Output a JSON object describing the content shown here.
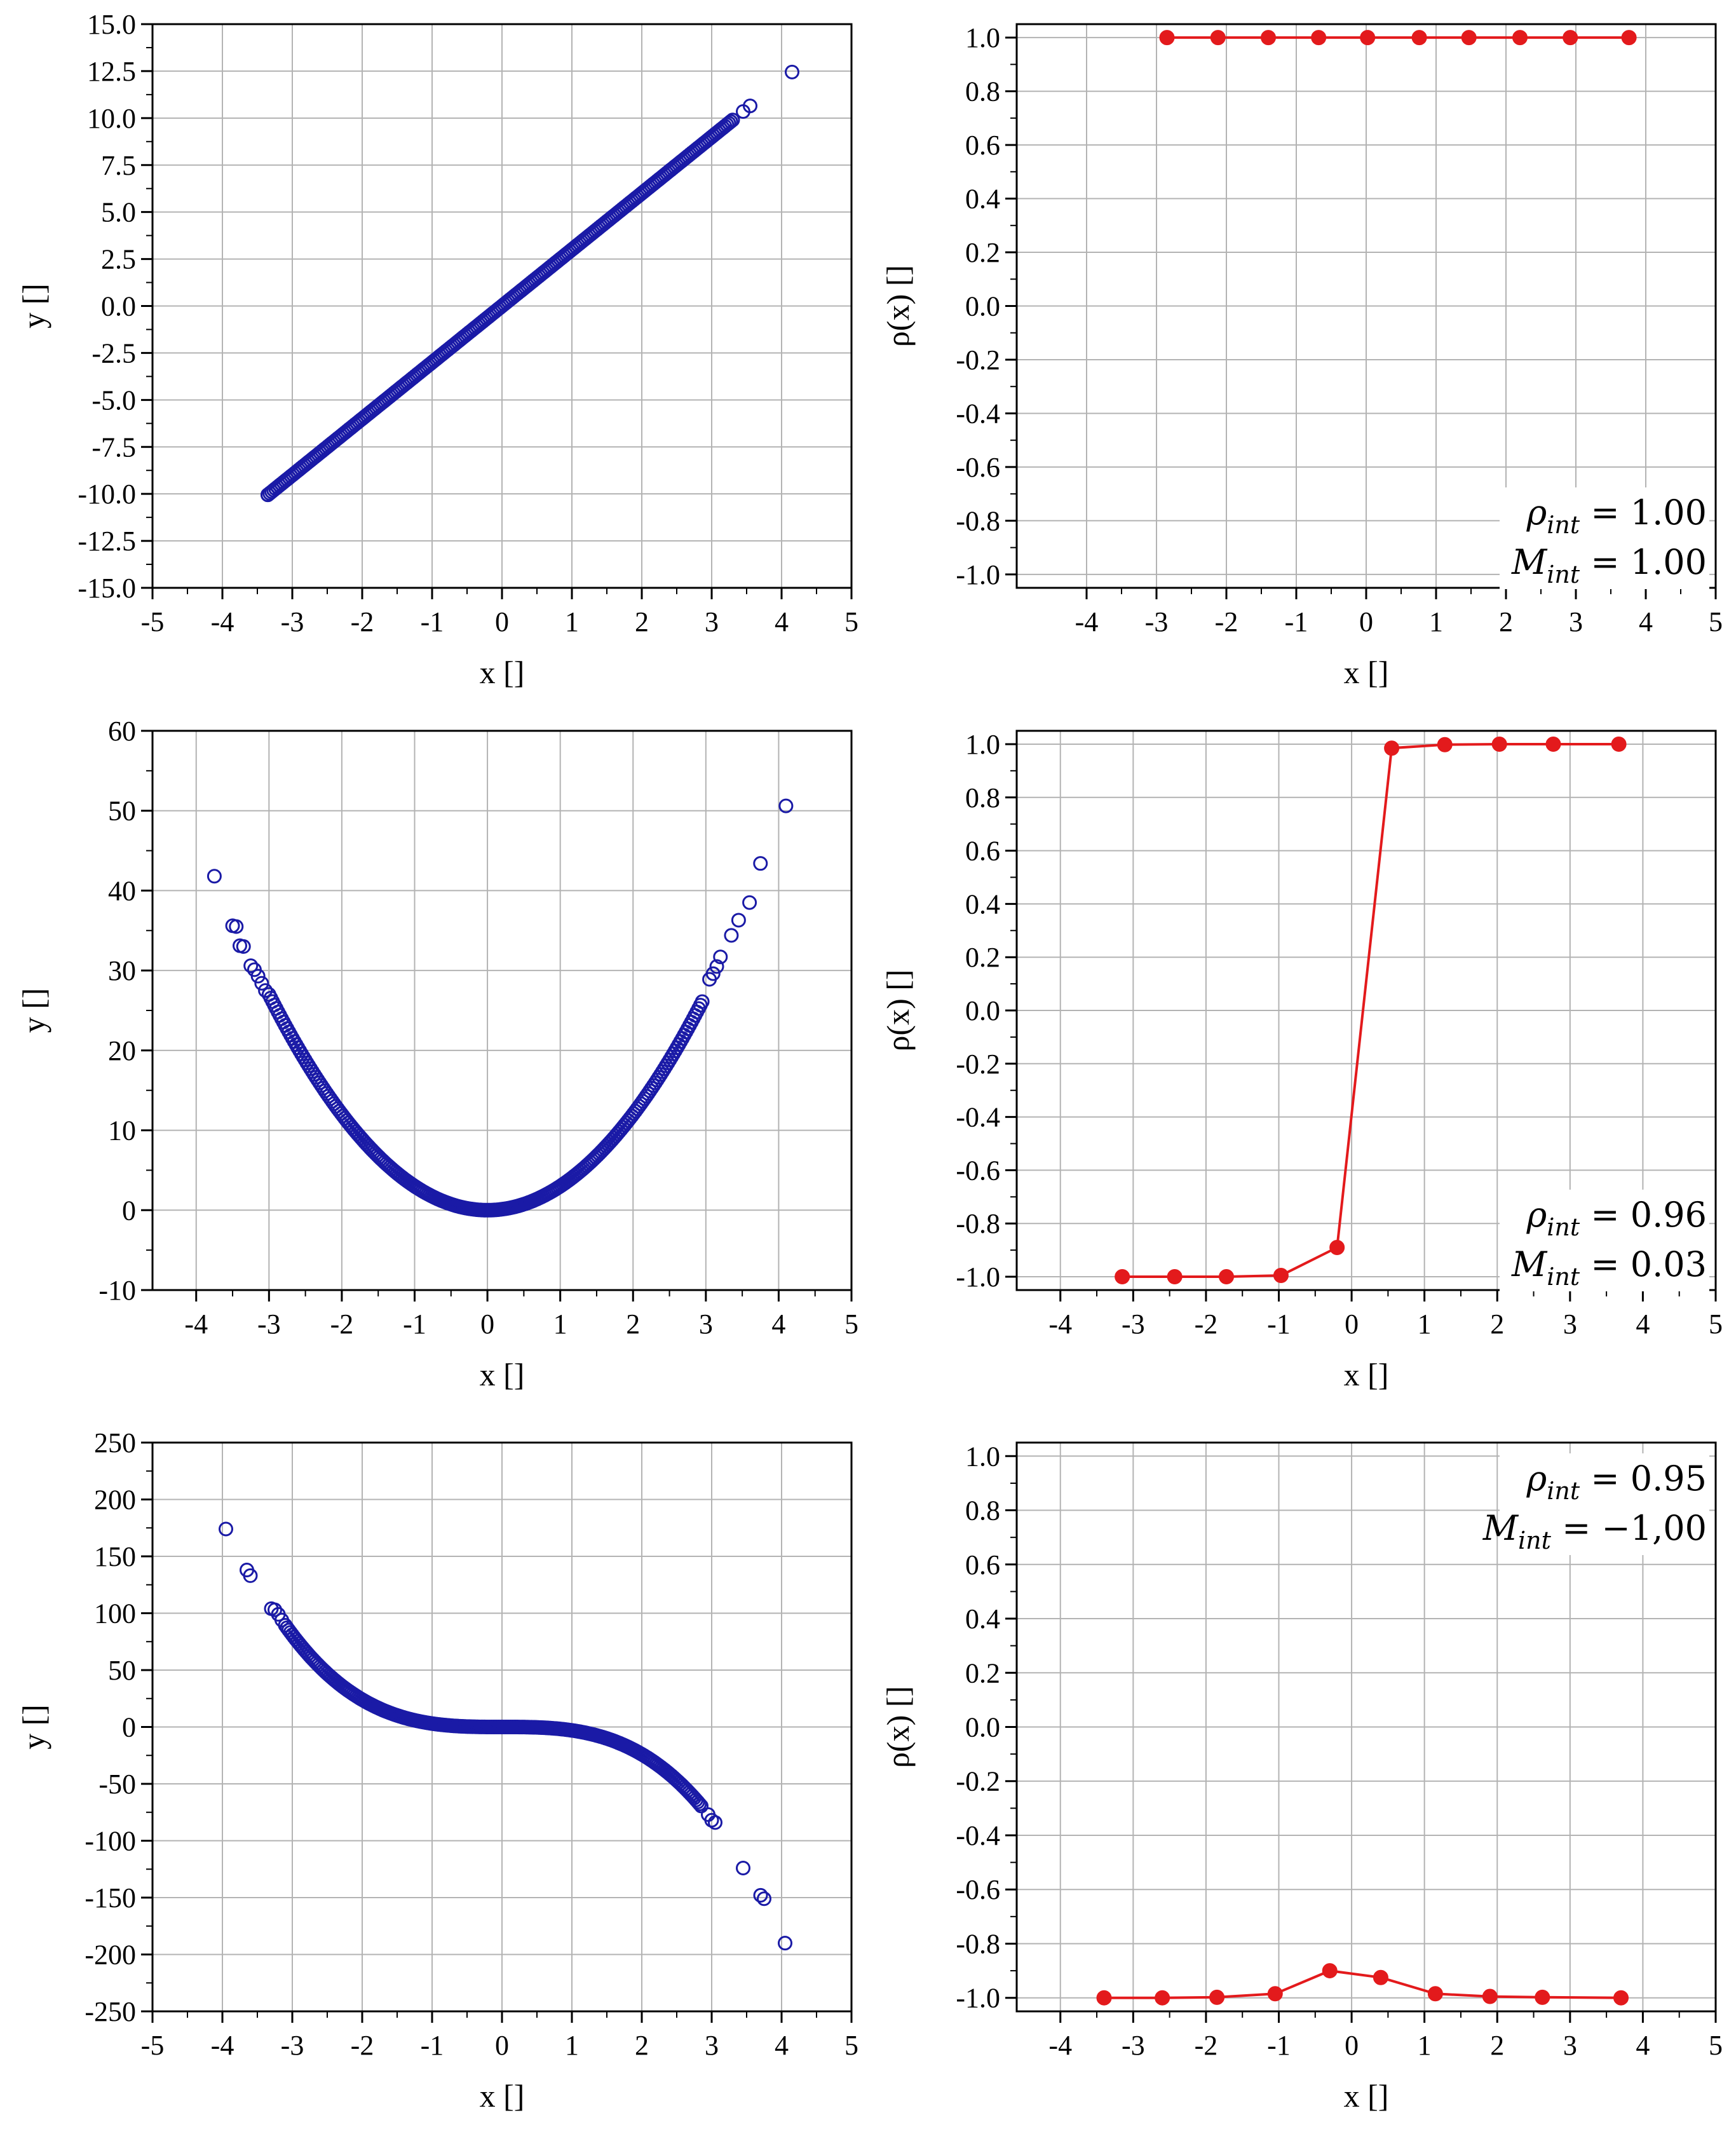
{
  "chart_data": [
    {
      "id": "scatter-linear",
      "type": "scatter",
      "xlabel": "x []",
      "ylabel": "y []",
      "xlim": [
        -5,
        5
      ],
      "ylim": [
        -15,
        15
      ],
      "xticks": [
        -5,
        -4,
        -3,
        -2,
        -1,
        0,
        1,
        2,
        3,
        4,
        5
      ],
      "yticks": [
        -15.0,
        -12.5,
        -10.0,
        -7.5,
        -5.0,
        -2.5,
        0.0,
        2.5,
        5.0,
        7.5,
        10.0,
        12.5,
        15.0
      ],
      "ytick_labels": [
        "-15.0",
        "-12.5",
        "-10.0",
        "-7.5",
        "-5.0",
        "-2.5",
        "0.0",
        "2.5",
        "5.0",
        "7.5",
        "10.0",
        "12.5",
        "15.0"
      ],
      "grid": true,
      "marker": "open-circle",
      "color": "#1a1aa6",
      "curve": {
        "model": "linear",
        "coef": 3.0,
        "x_range": [
          -3.35,
          3.3
        ]
      },
      "outliers": [
        [
          -3.35,
          -10.05
        ],
        [
          3.45,
          10.35
        ],
        [
          3.55,
          10.65
        ],
        [
          4.15,
          12.45
        ]
      ]
    },
    {
      "id": "rho-linear",
      "type": "line",
      "xlabel": "x []",
      "ylabel": "ρ(x) []",
      "xlim": [
        -5,
        5
      ],
      "ylim": [
        -1.05,
        1.05
      ],
      "xticks": [
        -4,
        -3,
        -2,
        -1,
        0,
        1,
        2,
        3,
        4,
        5
      ],
      "yticks": [
        -1.0,
        -0.8,
        -0.6,
        -0.4,
        -0.2,
        0.0,
        0.2,
        0.4,
        0.6,
        0.8,
        1.0
      ],
      "ytick_labels": [
        "-1.0",
        "-0.8",
        "-0.6",
        "-0.4",
        "-0.2",
        "0.0",
        "0.2",
        "0.4",
        "0.6",
        "0.8",
        "1.0"
      ],
      "grid": true,
      "color": "#e31a1c",
      "x": [
        -2.85,
        -2.12,
        -1.4,
        -0.68,
        0.02,
        0.76,
        1.47,
        2.2,
        2.92,
        3.76
      ],
      "y": [
        1.0,
        1.0,
        1.0,
        1.0,
        1.0,
        1.0,
        1.0,
        1.0,
        1.0,
        1.0
      ],
      "annotation": {
        "rho_prefix": "ρ",
        "rho_sub": "int",
        "rho_value": " = 1.00",
        "m_prefix": "M",
        "m_sub": "int",
        "m_value": " = 1.00",
        "position": "bottom-right"
      }
    },
    {
      "id": "scatter-quadratic",
      "type": "scatter",
      "xlabel": "x []",
      "ylabel": "y []",
      "xlim": [
        -4.6,
        5
      ],
      "ylim": [
        -10,
        60
      ],
      "xticks": [
        -4,
        -3,
        -2,
        -1,
        0,
        1,
        2,
        3,
        4,
        5
      ],
      "yticks": [
        -10,
        0,
        10,
        20,
        30,
        40,
        50,
        60
      ],
      "ytick_labels": [
        "-10",
        "0",
        "10",
        "20",
        "30",
        "40",
        "50",
        "60"
      ],
      "grid": true,
      "marker": "open-circle",
      "color": "#1a1aa6",
      "curve": {
        "model": "quadratic",
        "coef": 3.0,
        "x_range": [
          -3.0,
          2.95
        ]
      },
      "outliers": [
        [
          -3.75,
          41.8
        ],
        [
          -3.5,
          35.6
        ],
        [
          -3.45,
          35.5
        ],
        [
          -3.4,
          33.1
        ],
        [
          -3.35,
          33.0
        ],
        [
          -3.25,
          30.6
        ],
        [
          -3.2,
          30.1
        ],
        [
          -3.15,
          29.3
        ],
        [
          -3.1,
          28.4
        ],
        [
          -3.05,
          27.5
        ],
        [
          3.05,
          28.9
        ],
        [
          3.1,
          29.6
        ],
        [
          3.15,
          30.5
        ],
        [
          3.2,
          31.7
        ],
        [
          3.35,
          34.4
        ],
        [
          3.45,
          36.3
        ],
        [
          3.6,
          38.5
        ],
        [
          3.75,
          43.4
        ],
        [
          4.1,
          50.6
        ]
      ]
    },
    {
      "id": "rho-quadratic",
      "type": "line",
      "xlabel": "x []",
      "ylabel": "ρ(x) []",
      "xlim": [
        -4.6,
        5
      ],
      "ylim": [
        -1.05,
        1.05
      ],
      "xticks": [
        -4,
        -3,
        -2,
        -1,
        0,
        1,
        2,
        3,
        4,
        5
      ],
      "yticks": [
        -1.0,
        -0.8,
        -0.6,
        -0.4,
        -0.2,
        0.0,
        0.2,
        0.4,
        0.6,
        0.8,
        1.0
      ],
      "ytick_labels": [
        "-1.0",
        "-0.8",
        "-0.6",
        "-0.4",
        "-0.2",
        "0.0",
        "0.2",
        "0.4",
        "0.6",
        "0.8",
        "1.0"
      ],
      "grid": true,
      "color": "#e31a1c",
      "x": [
        -3.15,
        -2.43,
        -1.72,
        -0.97,
        -0.2,
        0.55,
        1.28,
        2.03,
        2.77,
        3.67
      ],
      "y": [
        -1.0,
        -1.0,
        -1.0,
        -0.995,
        -0.89,
        0.985,
        0.998,
        1.0,
        1.0,
        1.0
      ],
      "annotation": {
        "rho_prefix": "ρ",
        "rho_sub": "int",
        "rho_value": " = 0.96",
        "m_prefix": "M",
        "m_sub": "int",
        "m_value": " = 0.03",
        "position": "bottom-right"
      }
    },
    {
      "id": "scatter-cubic",
      "type": "scatter",
      "xlabel": "x []",
      "ylabel": "y []",
      "xlim": [
        -5,
        5
      ],
      "ylim": [
        -250,
        250
      ],
      "xticks": [
        -5,
        -4,
        -3,
        -2,
        -1,
        0,
        1,
        2,
        3,
        4,
        5
      ],
      "yticks": [
        -250,
        -200,
        -150,
        -100,
        -50,
        0,
        50,
        100,
        150,
        200,
        250
      ],
      "ytick_labels": [
        "-250",
        "-200",
        "-150",
        "-100",
        "-50",
        "0",
        "50",
        "100",
        "150",
        "200",
        "250"
      ],
      "grid": true,
      "marker": "open-circle",
      "color": "#1a1aa6",
      "curve": {
        "model": "cubic",
        "coef": -3.0,
        "x_range": [
          -3.1,
          2.85
        ]
      },
      "outliers": [
        [
          -3.95,
          174
        ],
        [
          -3.65,
          138
        ],
        [
          -3.6,
          133
        ],
        [
          -3.3,
          104
        ],
        [
          -3.25,
          103
        ],
        [
          -3.2,
          99
        ],
        [
          -3.15,
          94
        ],
        [
          2.95,
          -77
        ],
        [
          3.0,
          -82
        ],
        [
          3.05,
          -84
        ],
        [
          3.45,
          -124
        ],
        [
          3.7,
          -148
        ],
        [
          3.75,
          -151
        ],
        [
          4.05,
          -190
        ]
      ]
    },
    {
      "id": "rho-cubic",
      "type": "line",
      "xlabel": "x []",
      "ylabel": "ρ(x) []",
      "xlim": [
        -4.6,
        5
      ],
      "ylim": [
        -1.05,
        1.05
      ],
      "xticks": [
        -4,
        -3,
        -2,
        -1,
        0,
        1,
        2,
        3,
        4,
        5
      ],
      "yticks": [
        -1.0,
        -0.8,
        -0.6,
        -0.4,
        -0.2,
        0.0,
        0.2,
        0.4,
        0.6,
        0.8,
        1.0
      ],
      "ytick_labels": [
        "-1.0",
        "-0.8",
        "-0.6",
        "-0.4",
        "-0.2",
        "0.0",
        "0.2",
        "0.4",
        "0.6",
        "0.8",
        "1.0"
      ],
      "grid": true,
      "color": "#e31a1c",
      "x": [
        -3.4,
        -2.6,
        -1.85,
        -1.05,
        -0.3,
        0.4,
        1.15,
        1.9,
        2.62,
        3.7
      ],
      "y": [
        -1.0,
        -1.0,
        -0.998,
        -0.985,
        -0.9,
        -0.925,
        -0.985,
        -0.995,
        -0.998,
        -1.0
      ],
      "annotation": {
        "rho_prefix": "ρ",
        "rho_sub": "int",
        "rho_value": " = 0.95",
        "m_prefix": "M",
        "m_sub": "int",
        "m_value": " = −1,00",
        "position": "top-right"
      }
    }
  ]
}
